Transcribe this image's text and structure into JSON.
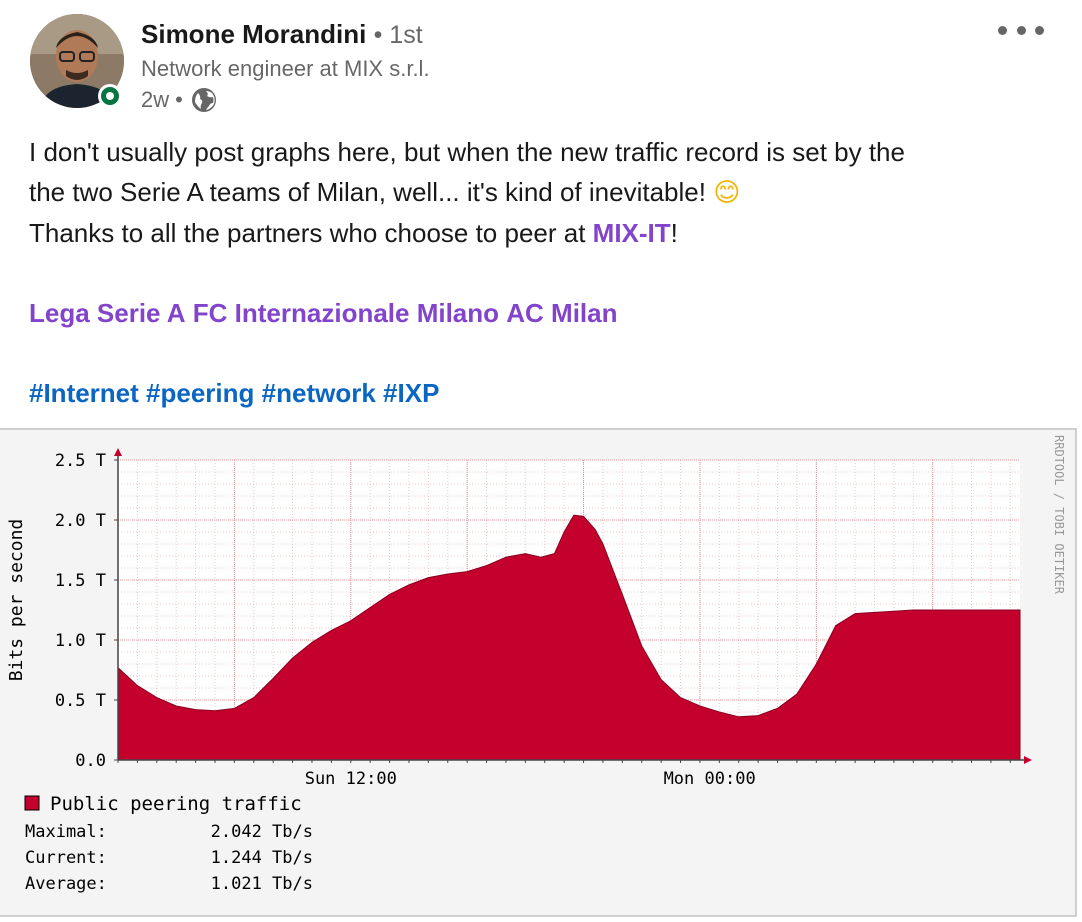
{
  "author": {
    "name": "Simone Morandini",
    "degree": "1st",
    "headline": "Network engineer at MIX s.r.l.",
    "time": "2w",
    "separator": "•",
    "presence_color": "#057642",
    "visibility_icon": "globe-icon"
  },
  "menu": {
    "icon": "more-horizontal-icon"
  },
  "post": {
    "line1": "I don't usually post graphs here, but when the new traffic record is set by the",
    "line2": "the two Serie A teams of Milan, well... it's kind of inevitable!",
    "emoji": "😊",
    "line3_pre": "Thanks to all the partners who choose to peer at ",
    "line3_mention": "MIX-IT",
    "line3_post": "!",
    "mentions": [
      "Lega Serie A",
      "FC Internazionale Milano",
      "AC Milan"
    ],
    "hashtags": [
      "#Internet",
      "#peering",
      "#network",
      "#IXP"
    ],
    "mention_color": "#8344cc",
    "hashtag_color": "#0a66c2"
  },
  "chart_data": {
    "type": "area",
    "ylabel": "Bits per second",
    "yticks": [
      "0.0",
      "0.5 T",
      "1.0 T",
      "1.5 T",
      "2.0 T",
      "2.5 T"
    ],
    "ylim": [
      0,
      2.5
    ],
    "xlim": [
      0,
      46.5
    ],
    "xticks": [
      {
        "label": "Sun 12:00",
        "x": 12
      },
      {
        "label": "Mon 00:00",
        "x": 30.5
      }
    ],
    "watermark": "RRDTOOL / TOBI OETIKER",
    "grid": true,
    "fill_color": "#c4002c",
    "series": [
      {
        "name": "Public peering traffic",
        "x": [
          0,
          1,
          2,
          3,
          4,
          5,
          6,
          7,
          8,
          9,
          10,
          11,
          12,
          13,
          14,
          15,
          16,
          17,
          18,
          19,
          20,
          21,
          21.8,
          22.5,
          23,
          23.5,
          24,
          24.6,
          25,
          26,
          27,
          28,
          29,
          30,
          31,
          32,
          33,
          34,
          35,
          36,
          37,
          38,
          39,
          40,
          41,
          42,
          43,
          44,
          45,
          46.5
        ],
        "values": [
          0.77,
          0.62,
          0.52,
          0.45,
          0.42,
          0.41,
          0.43,
          0.52,
          0.68,
          0.85,
          0.98,
          1.08,
          1.16,
          1.27,
          1.38,
          1.46,
          1.52,
          1.55,
          1.57,
          1.62,
          1.69,
          1.72,
          1.69,
          1.72,
          1.9,
          2.04,
          2.03,
          1.92,
          1.8,
          1.38,
          0.95,
          0.67,
          0.52,
          0.45,
          0.4,
          0.36,
          0.37,
          0.43,
          0.55,
          0.8,
          1.12,
          1.22,
          1.23,
          1.24,
          1.25,
          1.25,
          1.25,
          1.25,
          1.25,
          1.25
        ]
      }
    ],
    "legend": {
      "series_name": "Public peering traffic",
      "stats": [
        {
          "label": "Maximal:",
          "value": "2.042 Tb/s"
        },
        {
          "label": "Current:",
          "value": "1.244 Tb/s"
        },
        {
          "label": "Average:",
          "value": "1.021 Tb/s"
        }
      ]
    }
  }
}
